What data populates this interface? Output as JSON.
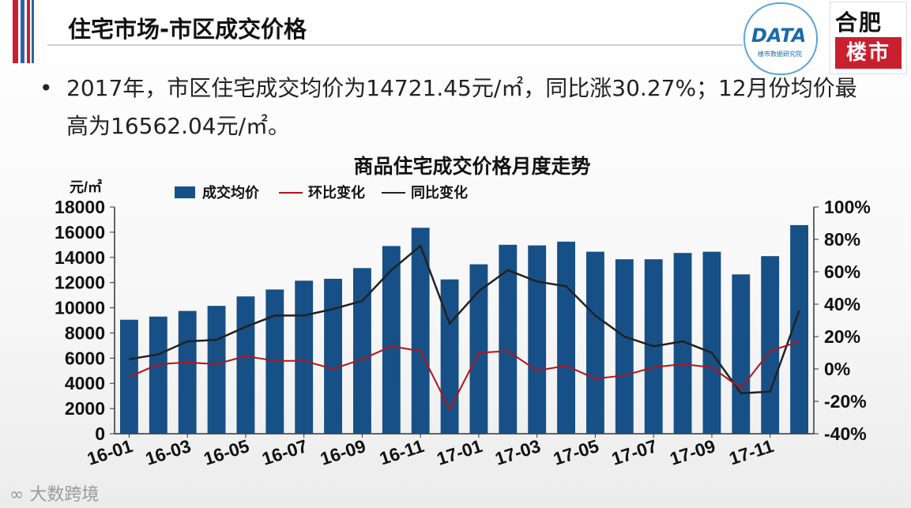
{
  "slide": {
    "title": "住宅市场-市区成交价格",
    "bullet_text": "2017年，市区住宅成交均价为14721.45元/㎡，同比涨30.27%；12月份均价最高为16562.04元/㎡。",
    "watermark": "大数跨境",
    "logo_left_text": "DATA",
    "logo_left_sub": "楼市数据研究院",
    "logo_right_top": "合肥",
    "logo_right_bottom": "楼市",
    "colors": {
      "accent_red": "#c8202f",
      "accent_blue": "#2d63a8"
    }
  },
  "chart_data": {
    "type": "bar",
    "title": "商品住宅成交价格月度走势",
    "ylabel": "元/㎡",
    "x": [
      "16-01",
      "16-02",
      "16-03",
      "16-04",
      "16-05",
      "16-06",
      "16-07",
      "16-08",
      "16-09",
      "16-10",
      "16-11",
      "16-12",
      "17-01",
      "17-02",
      "17-03",
      "17-04",
      "17-05",
      "17-06",
      "17-07",
      "17-08",
      "17-09",
      "17-10",
      "17-11",
      "17-12"
    ],
    "x_tick_labels": [
      "16-01",
      "16-03",
      "16-05",
      "16-07",
      "16-09",
      "16-11",
      "17-01",
      "17-03",
      "17-05",
      "17-07",
      "17-09",
      "17-11"
    ],
    "ylim": [
      0,
      18000
    ],
    "y_ticks": [
      "0",
      "2000",
      "4000",
      "6000",
      "8000",
      "10000",
      "12000",
      "14000",
      "16000",
      "18000"
    ],
    "y2lim": [
      -40,
      100
    ],
    "y2_ticks": [
      "-40%",
      "-20%",
      "0%",
      "20%",
      "40%",
      "60%",
      "80%",
      "100%"
    ],
    "legend_position": "top",
    "series": [
      {
        "name": "成交均价",
        "type": "bar",
        "axis": "left",
        "color": "#175086",
        "values": [
          9050,
          9300,
          9750,
          10150,
          10900,
          11450,
          12150,
          12300,
          13150,
          14900,
          16350,
          12250,
          13450,
          15000,
          14950,
          15250,
          14450,
          13850,
          13850,
          14350,
          14450,
          12650,
          14100,
          16562
        ]
      },
      {
        "name": "环比变化",
        "type": "line",
        "axis": "right",
        "color": "#b0151c",
        "values": [
          -5,
          3,
          4,
          3,
          8,
          5,
          5,
          0,
          6,
          14,
          11,
          -25,
          10,
          11,
          -1,
          2,
          -6,
          -4,
          1,
          3,
          1,
          -12,
          11,
          17
        ]
      },
      {
        "name": "同比变化",
        "type": "line",
        "axis": "right",
        "color": "#222222",
        "values": [
          6,
          9,
          17,
          18,
          26,
          33,
          33,
          37,
          42,
          61,
          76,
          28,
          48,
          61,
          54,
          51,
          33,
          20,
          14,
          17,
          10,
          -15,
          -14,
          36
        ]
      }
    ]
  }
}
